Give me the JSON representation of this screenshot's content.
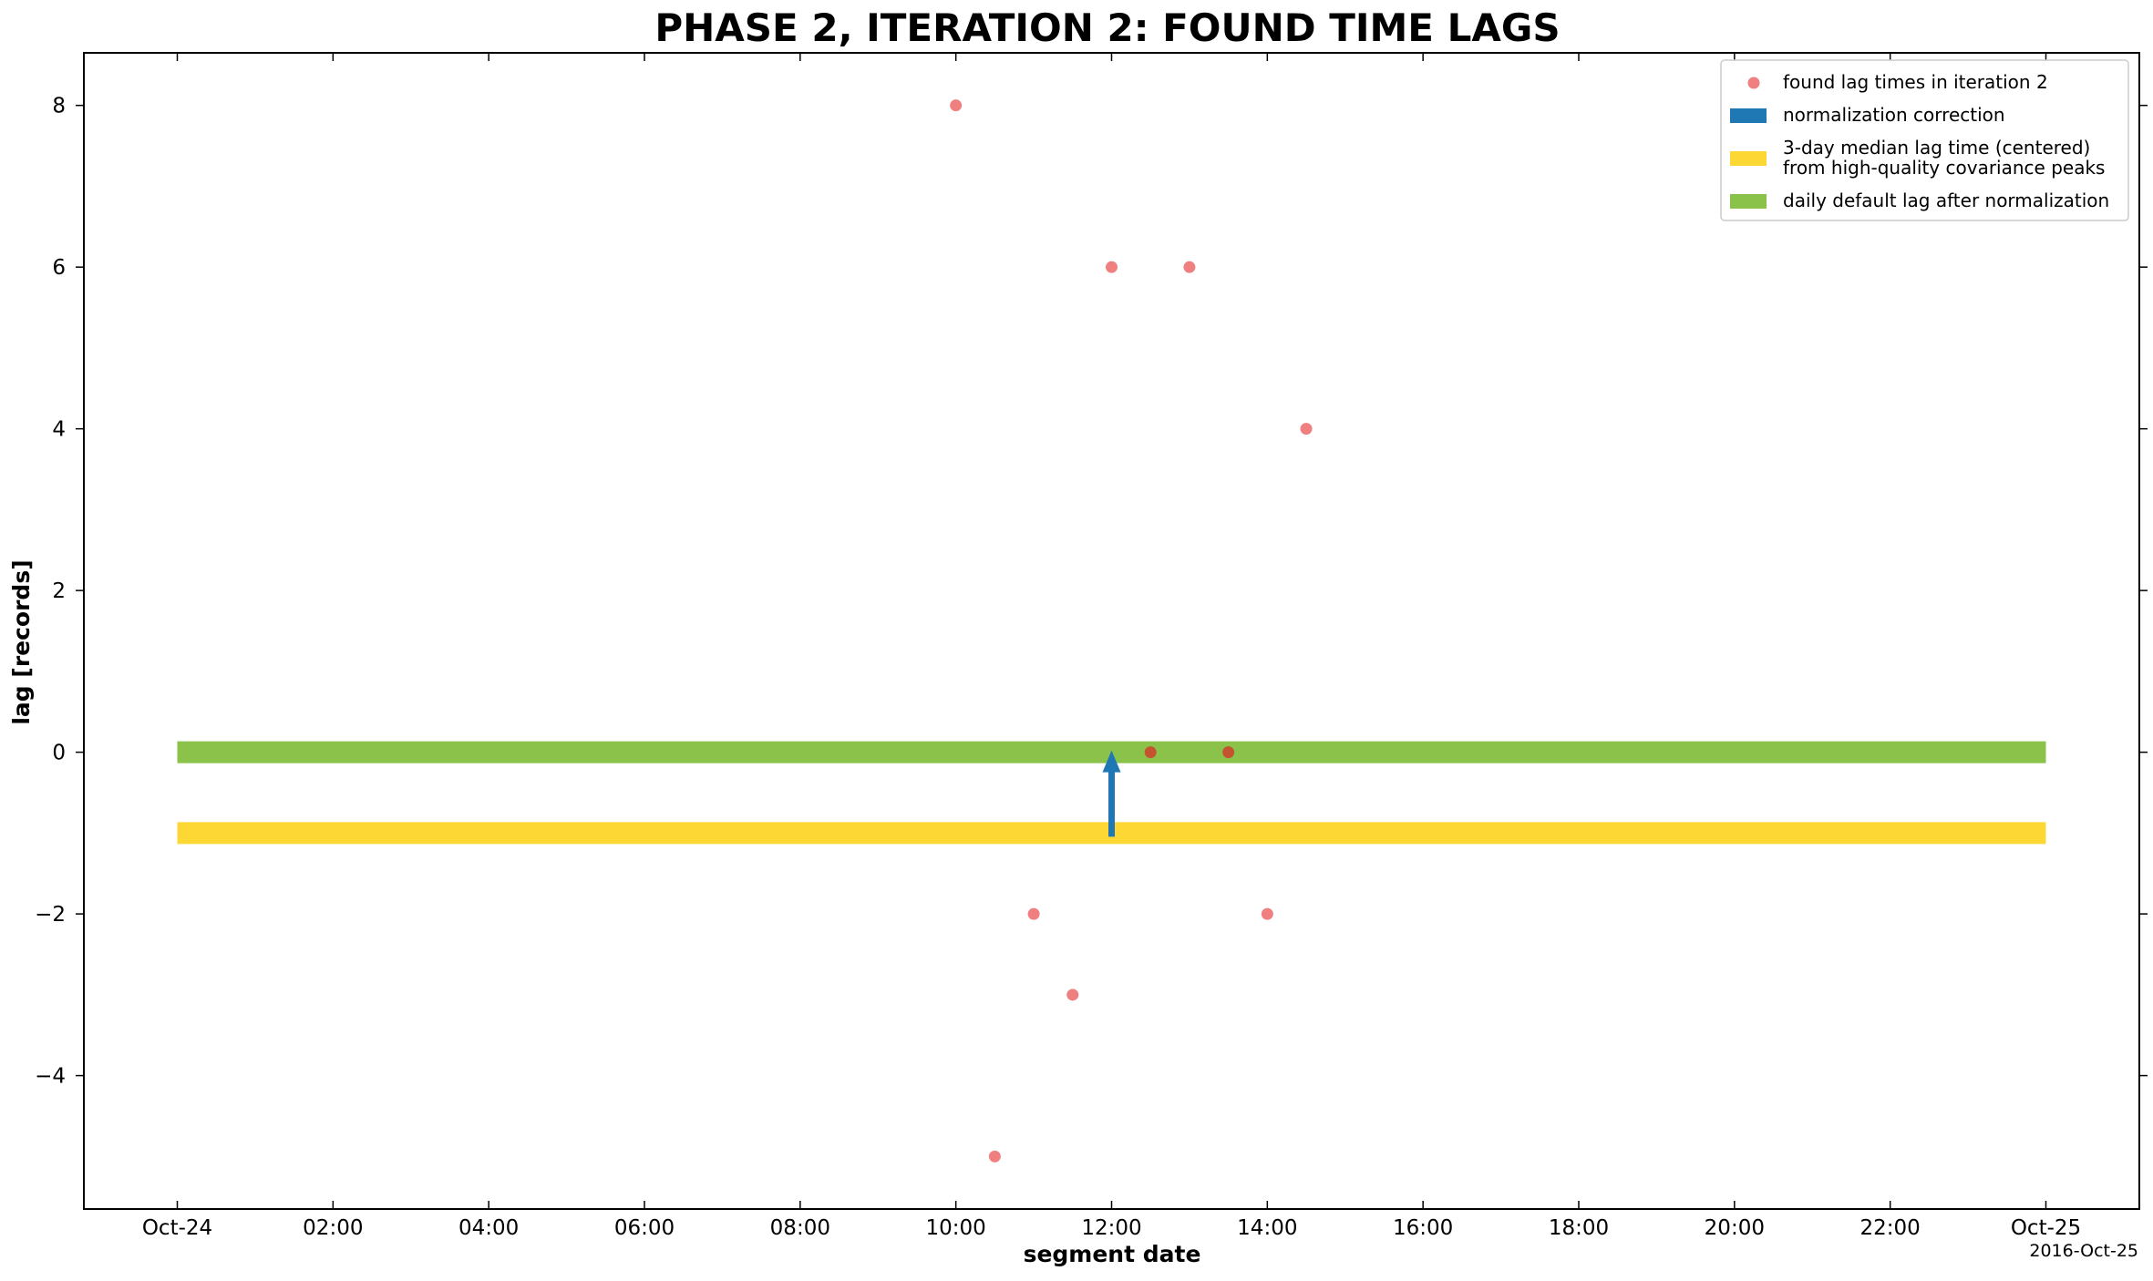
{
  "chart_data": {
    "type": "scatter",
    "title": "PHASE 2, ITERATION 2: FOUND TIME LAGS",
    "xlabel": "segment date",
    "ylabel": "lag  [records]",
    "x_offset_label": "2016-Oct-25",
    "xlim": [
      "2016-10-23T22:48",
      "2016-10-25T01:12"
    ],
    "ylim": [
      -5.65,
      8.65
    ],
    "x_ticks": [
      {
        "value": "2016-10-24T00:00",
        "label": "Oct-24"
      },
      {
        "value": "2016-10-24T02:00",
        "label": "02:00"
      },
      {
        "value": "2016-10-24T04:00",
        "label": "04:00"
      },
      {
        "value": "2016-10-24T06:00",
        "label": "06:00"
      },
      {
        "value": "2016-10-24T08:00",
        "label": "08:00"
      },
      {
        "value": "2016-10-24T10:00",
        "label": "10:00"
      },
      {
        "value": "2016-10-24T12:00",
        "label": "12:00"
      },
      {
        "value": "2016-10-24T14:00",
        "label": "14:00"
      },
      {
        "value": "2016-10-24T16:00",
        "label": "16:00"
      },
      {
        "value": "2016-10-24T18:00",
        "label": "18:00"
      },
      {
        "value": "2016-10-24T20:00",
        "label": "20:00"
      },
      {
        "value": "2016-10-24T22:00",
        "label": "22:00"
      },
      {
        "value": "2016-10-25T00:00",
        "label": "Oct-25"
      }
    ],
    "y_ticks": [
      {
        "value": 8,
        "label": "8"
      },
      {
        "value": 6,
        "label": "6"
      },
      {
        "value": 4,
        "label": "4"
      },
      {
        "value": 2,
        "label": "2"
      },
      {
        "value": 0,
        "label": "0"
      },
      {
        "value": -2,
        "label": "−2"
      },
      {
        "value": -4,
        "label": "−4"
      }
    ],
    "grid": false,
    "legend_position": "top-right",
    "series": [
      {
        "name": "found lag times in iteration 2",
        "kind": "points",
        "color": "#f07f7f",
        "points": [
          {
            "x": "2016-10-24T10:00",
            "y": 8
          },
          {
            "x": "2016-10-24T10:30",
            "y": -5
          },
          {
            "x": "2016-10-24T11:00",
            "y": -2
          },
          {
            "x": "2016-10-24T11:30",
            "y": -3
          },
          {
            "x": "2016-10-24T12:00",
            "y": 6
          },
          {
            "x": "2016-10-24T12:30",
            "y": 0
          },
          {
            "x": "2016-10-24T13:00",
            "y": 6
          },
          {
            "x": "2016-10-24T13:30",
            "y": 0
          },
          {
            "x": "2016-10-24T14:00",
            "y": -2
          },
          {
            "x": "2016-10-24T14:30",
            "y": 4
          }
        ]
      },
      {
        "name": "normalization correction",
        "kind": "arrow",
        "color": "#1f77b4",
        "x": "2016-10-24T12:00",
        "y_from": -1,
        "y_to": 0
      },
      {
        "name": "3-day median lag time (centered)\nfrom high-quality covariance peaks",
        "legend_lines": [
          "3-day median lag time (centered)",
          "from high-quality covariance peaks"
        ],
        "kind": "band",
        "color": "#fdd835",
        "x_start": "2016-10-24T00:00",
        "x_end": "2016-10-25T00:00",
        "y": -1
      },
      {
        "name": "daily default lag after normalization",
        "kind": "band",
        "color": "#8bc34a",
        "x_start": "2016-10-24T00:00",
        "x_end": "2016-10-25T00:00",
        "y": 0
      }
    ]
  }
}
